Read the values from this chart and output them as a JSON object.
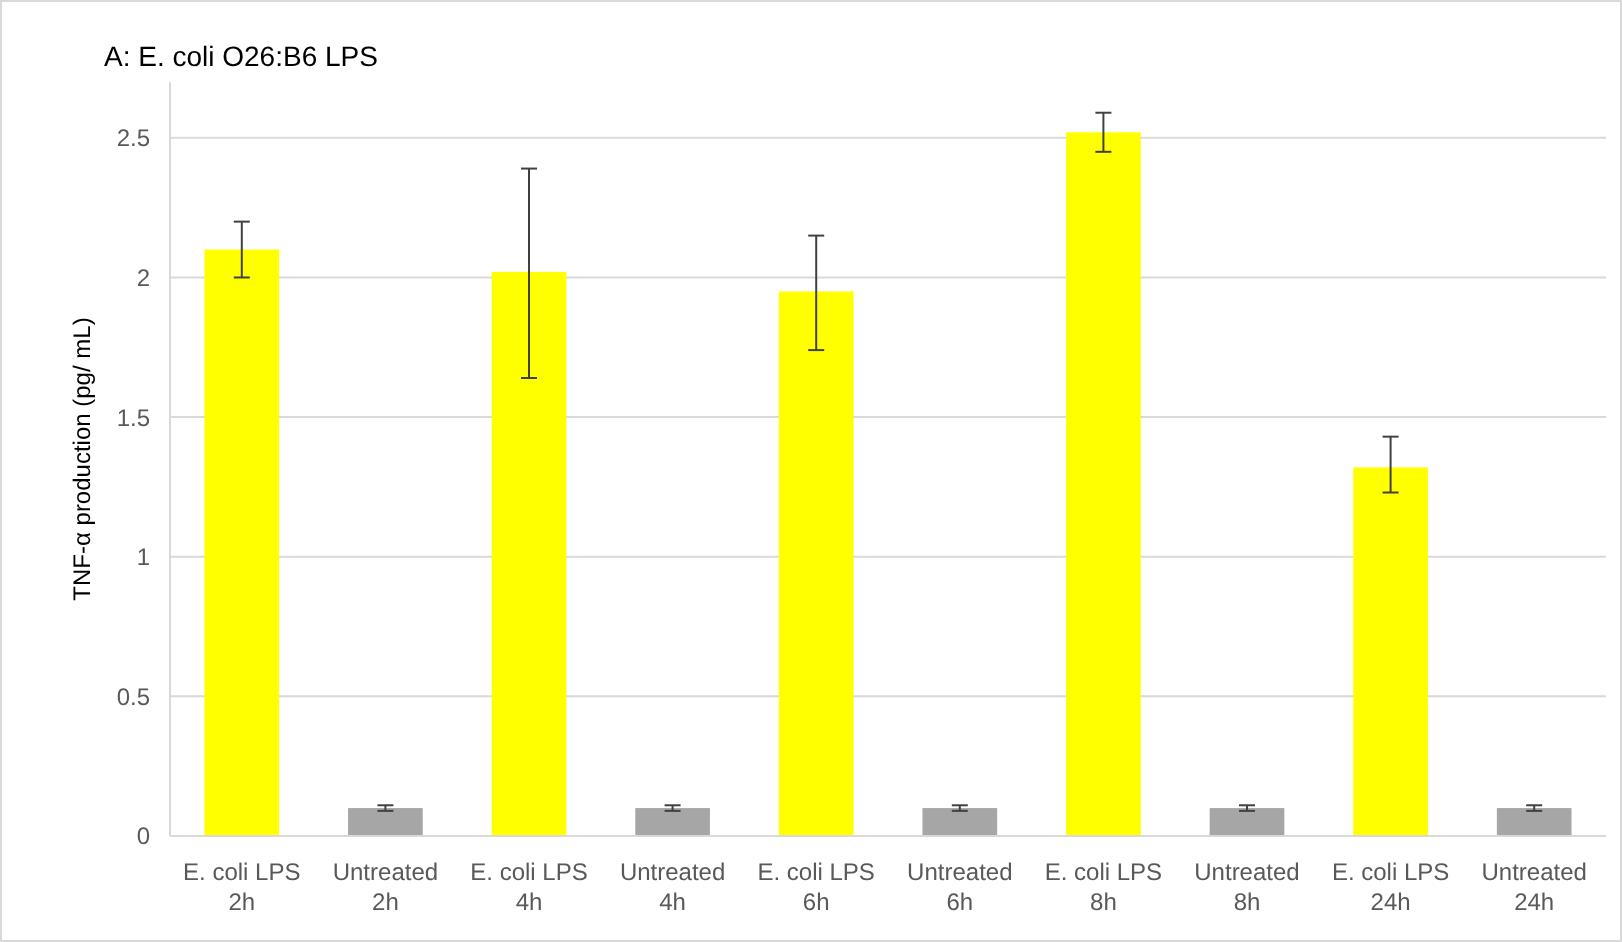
{
  "chart_data": {
    "type": "bar",
    "title": "A: E. coli O26:B6 LPS",
    "ylabel": "TNF-α production (pg/ mL)",
    "categories": [
      "E. coli LPS 2h",
      "Untreated 2h",
      "E. coli LPS 4h",
      "Untreated 4h",
      "E. coli LPS 6h",
      "Untreated 6h",
      "E. coli LPS 8h",
      "Untreated 8h",
      "E. coli LPS 24h",
      "Untreated 24h"
    ],
    "values": [
      2.1,
      0.1,
      2.02,
      0.1,
      1.95,
      0.1,
      2.52,
      0.1,
      1.32,
      0.1
    ],
    "errors": [
      [
        2.0,
        2.2
      ],
      [
        0.09,
        0.11
      ],
      [
        1.64,
        2.39
      ],
      [
        0.09,
        0.11
      ],
      [
        1.74,
        2.15
      ],
      [
        0.09,
        0.11
      ],
      [
        2.45,
        2.59
      ],
      [
        0.09,
        0.11
      ],
      [
        1.23,
        1.43
      ],
      [
        0.09,
        0.11
      ]
    ],
    "colors": [
      "#ffff00",
      "#a6a6a6",
      "#ffff00",
      "#a6a6a6",
      "#ffff00",
      "#a6a6a6",
      "#ffff00",
      "#a6a6a6",
      "#ffff00",
      "#a6a6a6"
    ],
    "ylim": [
      0,
      2.7
    ],
    "yticks": [
      0,
      {
        "value": 0.5,
        "label": "0.5"
      },
      1,
      {
        "value": 1.5,
        "label": "1.5"
      },
      2,
      {
        "value": 2.5,
        "label": "2.5"
      }
    ],
    "grid": "y"
  }
}
